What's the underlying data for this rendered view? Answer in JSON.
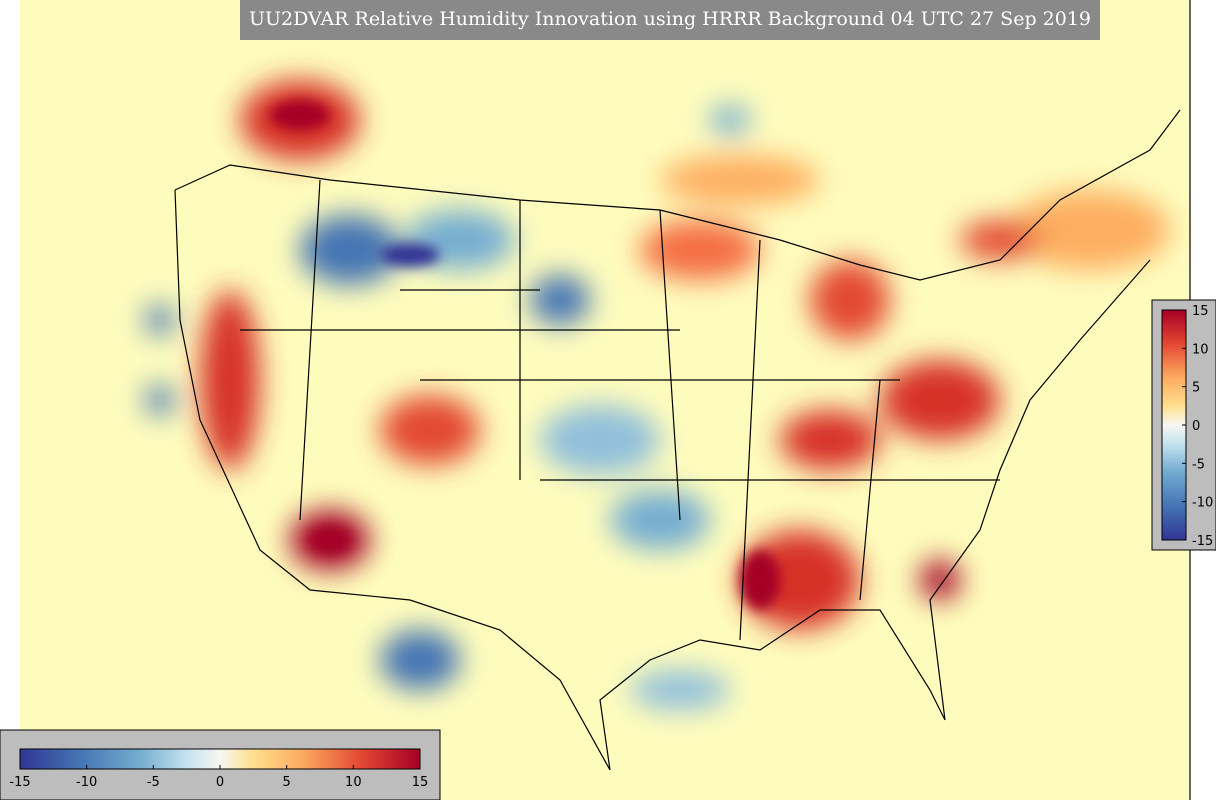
{
  "title": "UU2DVAR Relative Humidity Innovation using HRRR Background 04 UTC 27 Sep 2019",
  "colorbar": {
    "ticks": [
      -15,
      -10,
      -5,
      0,
      5,
      10,
      15
    ],
    "range": [
      -15,
      15
    ]
  }
}
